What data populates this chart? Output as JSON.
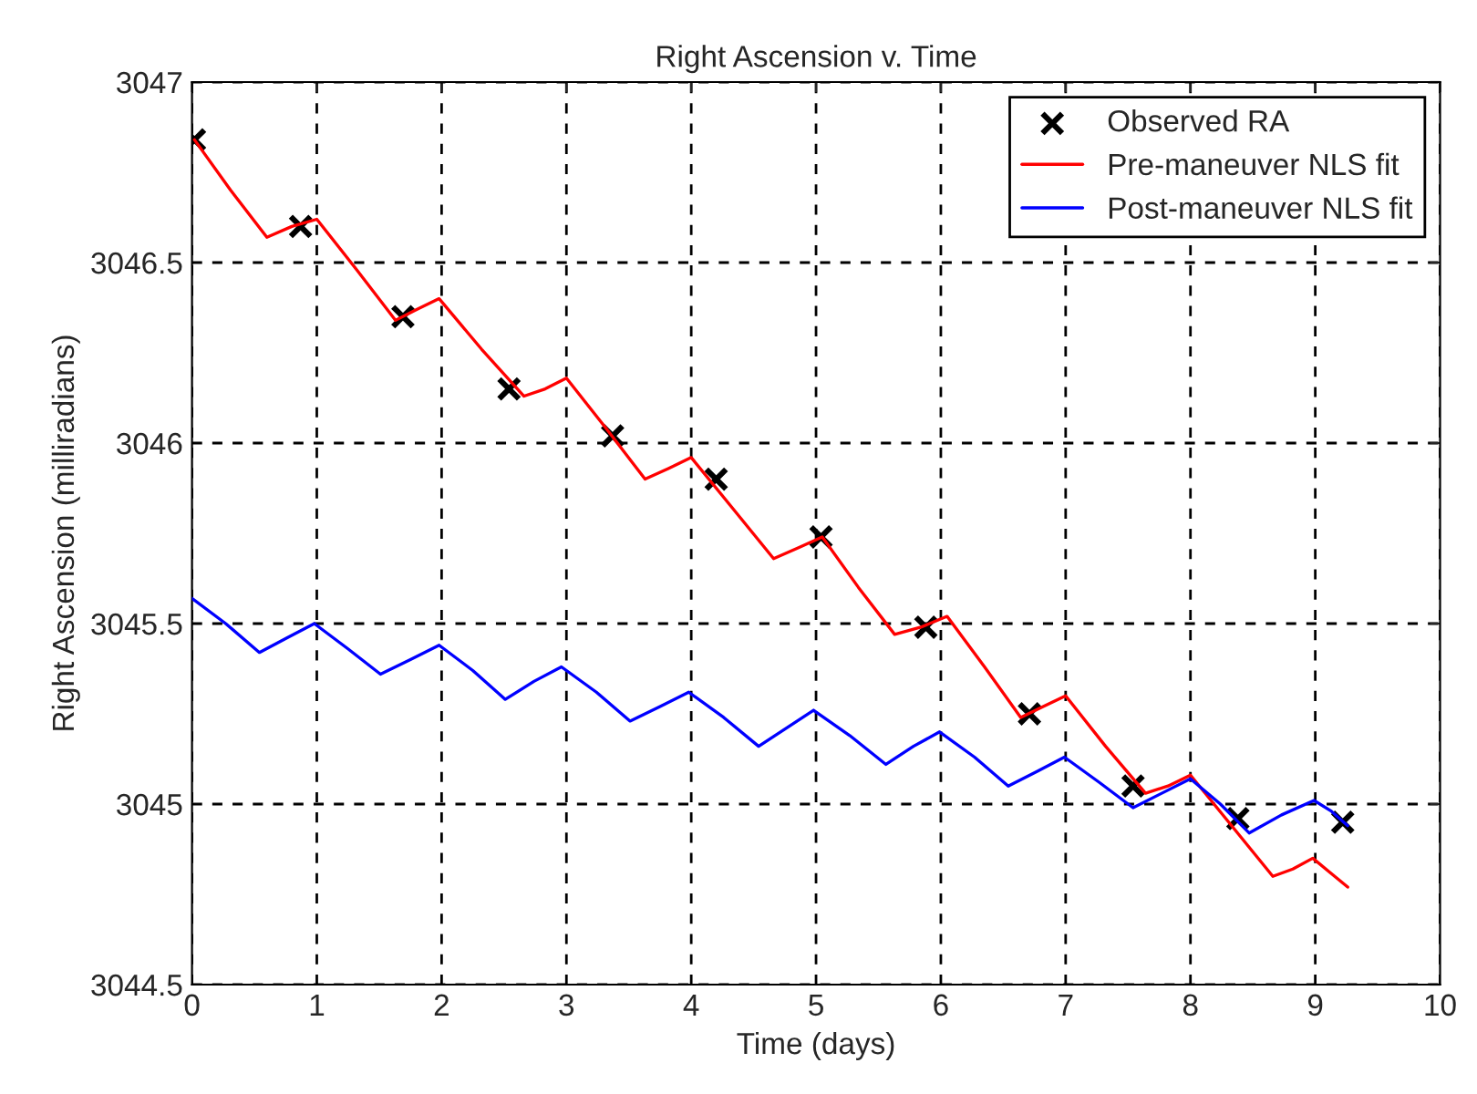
{
  "chart_data": {
    "type": "line",
    "title": "Right Ascension v. Time",
    "xlabel": "Time (days)",
    "ylabel": "Right Ascension (milliradians)",
    "xlim": [
      0,
      10
    ],
    "xticks": [
      0,
      1,
      2,
      3,
      4,
      5,
      6,
      7,
      8,
      9,
      10
    ],
    "ylim": [
      3044.5,
      3047
    ],
    "yticks": [
      3044.5,
      3045,
      3045.5,
      3046,
      3046.5,
      3047
    ],
    "grid": true,
    "legend": "top right",
    "series": [
      {
        "name": "Observed RA",
        "type": "scatter",
        "marker": "cross",
        "color": "#000000",
        "x": [
          0.02,
          0.87,
          1.69,
          2.54,
          3.37,
          4.2,
          5.04,
          5.88,
          6.71,
          7.54,
          8.38,
          9.22
        ],
        "values": [
          3046.84,
          3046.6,
          3046.35,
          3046.15,
          3046.02,
          3045.9,
          3045.74,
          3045.49,
          3045.25,
          3045.05,
          3044.96,
          3044.95
        ]
      },
      {
        "name": "Pre-maneuver NLS fit",
        "color": "#ff0000",
        "x": [
          0.02,
          0.31,
          0.6,
          0.8,
          1.0,
          1.32,
          1.63,
          1.8,
          1.98,
          2.32,
          2.66,
          2.83,
          3.0,
          3.32,
          3.63,
          3.82,
          4.0,
          4.33,
          4.66,
          4.86,
          5.05,
          5.34,
          5.63,
          5.84,
          6.05,
          6.35,
          6.64,
          6.82,
          7.0,
          7.32,
          7.64,
          7.82,
          8.0,
          8.33,
          8.66,
          8.82,
          8.98,
          9.12,
          9.26
        ],
        "values": [
          3046.84,
          3046.7,
          3046.57,
          3046.6,
          3046.62,
          3046.48,
          3046.34,
          3046.37,
          3046.4,
          3046.26,
          3046.13,
          3046.15,
          3046.18,
          3046.04,
          3045.9,
          3045.93,
          3045.96,
          3045.82,
          3045.68,
          3045.71,
          3045.74,
          3045.6,
          3045.47,
          3045.49,
          3045.52,
          3045.38,
          3045.24,
          3045.27,
          3045.3,
          3045.16,
          3045.03,
          3045.05,
          3045.08,
          3044.94,
          3044.8,
          3044.82,
          3044.85,
          3044.81,
          3044.77
        ]
      },
      {
        "name": "Post-maneuver NLS fit",
        "color": "#0000ff",
        "x": [
          0.0,
          0.27,
          0.54,
          0.76,
          0.98,
          1.25,
          1.51,
          1.75,
          1.98,
          2.25,
          2.51,
          2.74,
          2.96,
          3.24,
          3.51,
          3.75,
          3.98,
          4.26,
          4.54,
          4.76,
          4.98,
          5.27,
          5.56,
          5.78,
          5.99,
          6.27,
          6.54,
          6.77,
          6.99,
          7.27,
          7.54,
          7.77,
          8.0,
          8.24,
          8.47,
          8.73,
          8.99,
          9.13,
          9.26
        ],
        "values": [
          3045.57,
          3045.5,
          3045.42,
          3045.46,
          3045.5,
          3045.43,
          3045.36,
          3045.4,
          3045.44,
          3045.37,
          3045.29,
          3045.34,
          3045.38,
          3045.31,
          3045.23,
          3045.27,
          3045.31,
          3045.24,
          3045.16,
          3045.21,
          3045.26,
          3045.19,
          3045.11,
          3045.16,
          3045.2,
          3045.13,
          3045.05,
          3045.09,
          3045.13,
          3045.06,
          3044.99,
          3045.03,
          3045.07,
          3045.0,
          3044.92,
          3044.97,
          3045.01,
          3044.98,
          3044.94
        ]
      }
    ]
  }
}
